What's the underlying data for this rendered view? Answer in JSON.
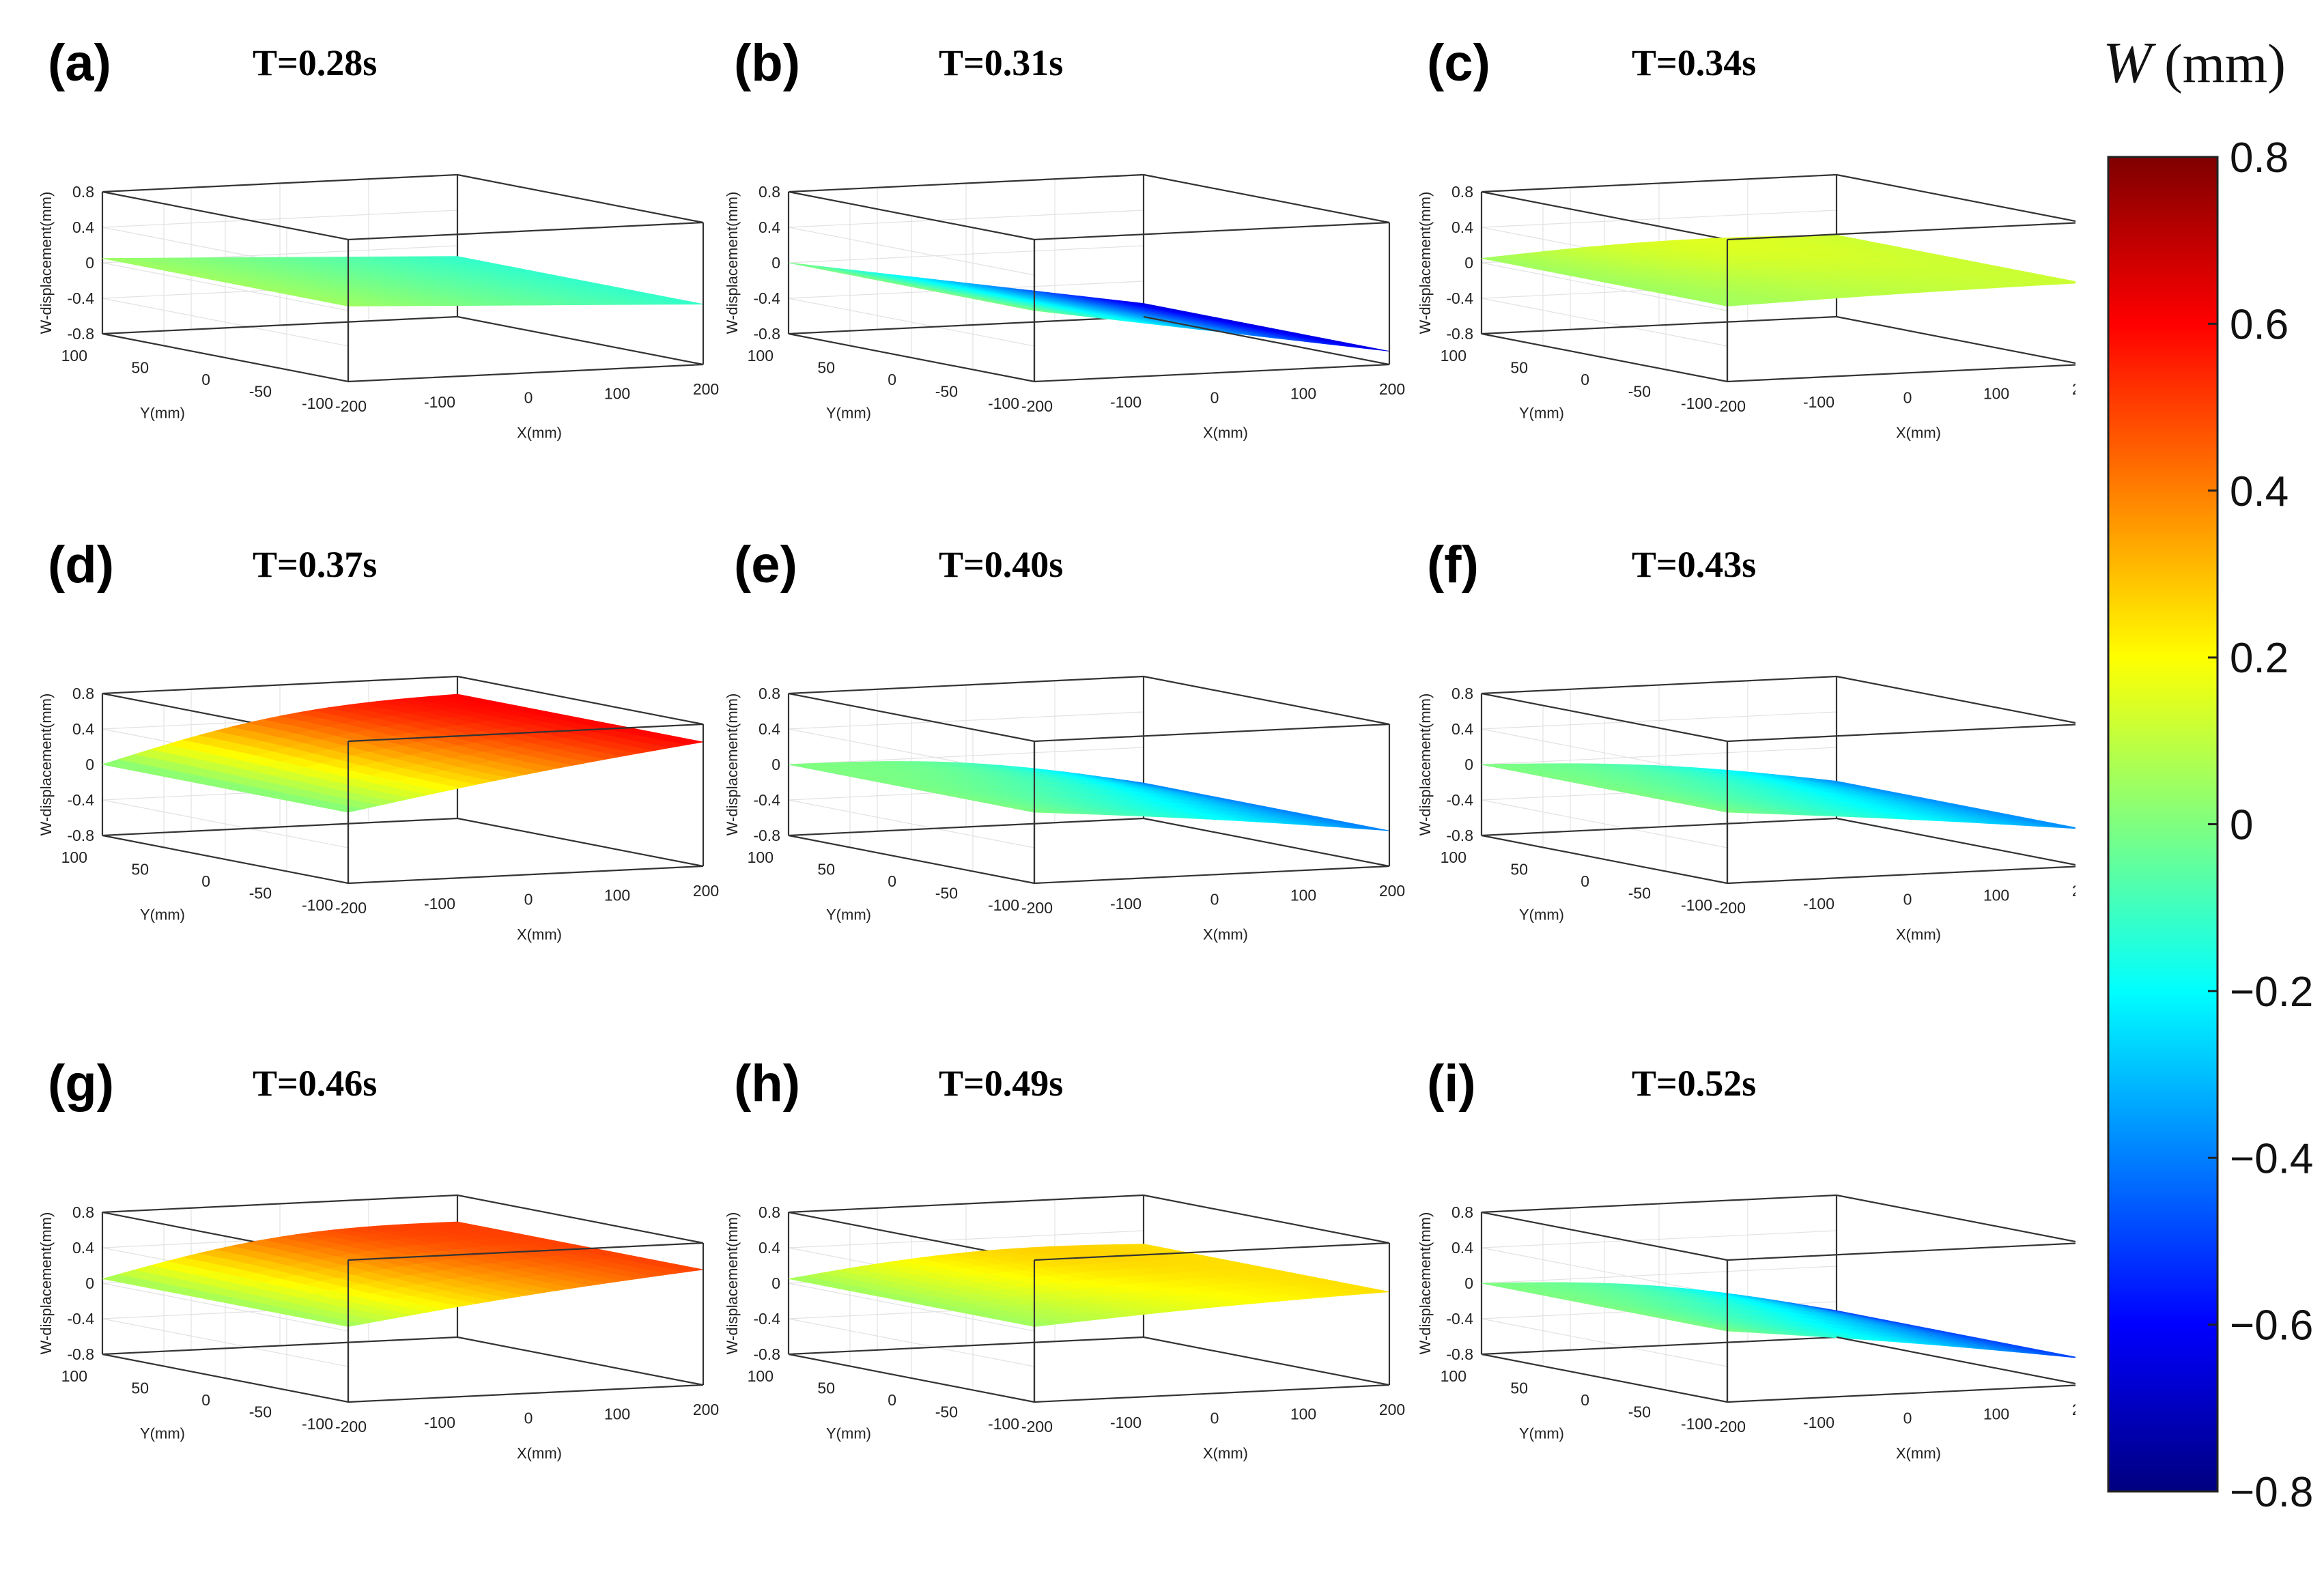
{
  "figure": {
    "colorbar": {
      "symbol": "W",
      "unit": "(mm)",
      "range": [
        -0.8,
        0.8
      ],
      "ticks": [
        "0.8",
        "0.6",
        "0.4",
        "0.2",
        "0",
        "−0.2",
        "−0.4",
        "−0.6",
        "−0.8"
      ],
      "tick_values": [
        0.8,
        0.6,
        0.4,
        0.2,
        0,
        -0.2,
        -0.4,
        -0.6,
        -0.8
      ],
      "colormap": "jet",
      "colors": [
        "#00007f",
        "#0000ff",
        "#007fff",
        "#00ffff",
        "#7fff7f",
        "#ffff00",
        "#ff7f00",
        "#ff0000",
        "#7f0000"
      ]
    },
    "axes_common": {
      "x_label": "X(mm)",
      "y_label": "Y(mm)",
      "z_label": "W-displacement(mm)",
      "x_ticks": [
        "-200",
        "-100",
        "0",
        "100",
        "200"
      ],
      "y_ticks": [
        "-100",
        "-50",
        "0",
        "50",
        "100"
      ],
      "z_ticks": [
        "-0.8",
        "-0.4",
        "0",
        "0.4",
        "0.8"
      ]
    }
  },
  "chart_data": [
    {
      "type": "surface",
      "label": "(a)",
      "title": "T=0.28s",
      "w_near_corner": 0.05,
      "w_far_corner": -0.12,
      "bump": 0.0,
      "xlabel": "X(mm)",
      "ylabel": "Y(mm)",
      "zlabel": "W-displacement(mm)",
      "xlim": [
        -200,
        200
      ],
      "ylim": [
        -100,
        100
      ],
      "zlim": [
        -0.8,
        0.8
      ]
    },
    {
      "type": "surface",
      "label": "(b)",
      "title": "T=0.31s",
      "w_near_corner": 0.0,
      "w_far_corner": -0.65,
      "bump": 0.0,
      "xlabel": "X(mm)",
      "ylabel": "Y(mm)",
      "zlabel": "W-displacement(mm)",
      "xlim": [
        -200,
        200
      ],
      "ylim": [
        -100,
        100
      ],
      "zlim": [
        -0.8,
        0.8
      ]
    },
    {
      "type": "surface",
      "label": "(c)",
      "title": "T=0.34s",
      "w_near_corner": 0.05,
      "w_far_corner": 0.12,
      "bump": 0.06,
      "xlabel": "X(mm)",
      "ylabel": "Y(mm)",
      "zlabel": "W-displacement(mm)",
      "xlim": [
        -200,
        200
      ],
      "ylim": [
        -100,
        100
      ],
      "zlim": [
        -0.8,
        0.8
      ]
    },
    {
      "type": "surface",
      "label": "(d)",
      "title": "T=0.37s",
      "w_near_corner": 0.0,
      "w_far_corner": 0.6,
      "bump": 0.15,
      "xlabel": "X(mm)",
      "ylabel": "Y(mm)",
      "zlabel": "W-displacement(mm)",
      "xlim": [
        -200,
        200
      ],
      "ylim": [
        -100,
        100
      ],
      "zlim": [
        -0.8,
        0.8
      ]
    },
    {
      "type": "surface",
      "label": "(e)",
      "title": "T=0.40s",
      "w_near_corner": 0.0,
      "w_far_corner": -0.4,
      "bump": 0.12,
      "xlabel": "X(mm)",
      "ylabel": "Y(mm)",
      "zlabel": "W-displacement(mm)",
      "xlim": [
        -200,
        200
      ],
      "ylim": [
        -100,
        100
      ],
      "zlim": [
        -0.8,
        0.8
      ]
    },
    {
      "type": "surface",
      "label": "(f)",
      "title": "T=0.43s",
      "w_near_corner": 0.0,
      "w_far_corner": -0.38,
      "bump": 0.08,
      "xlabel": "X(mm)",
      "ylabel": "Y(mm)",
      "zlabel": "W-displacement(mm)",
      "xlim": [
        -200,
        200
      ],
      "ylim": [
        -100,
        100
      ],
      "zlim": [
        -0.8,
        0.8
      ]
    },
    {
      "type": "surface",
      "label": "(g)",
      "title": "T=0.46s",
      "w_near_corner": 0.05,
      "w_far_corner": 0.5,
      "bump": 0.15,
      "xlabel": "X(mm)",
      "ylabel": "Y(mm)",
      "zlabel": "W-displacement(mm)",
      "xlim": [
        -200,
        200
      ],
      "ylim": [
        -100,
        100
      ],
      "zlim": [
        -0.8,
        0.8
      ]
    },
    {
      "type": "surface",
      "label": "(h)",
      "title": "T=0.49s",
      "w_near_corner": 0.05,
      "w_far_corner": 0.25,
      "bump": 0.1,
      "xlabel": "X(mm)",
      "ylabel": "Y(mm)",
      "zlabel": "W-displacement(mm)",
      "xlim": [
        -200,
        200
      ],
      "ylim": [
        -100,
        100
      ],
      "zlim": [
        -0.8,
        0.8
      ]
    },
    {
      "type": "surface",
      "label": "(i)",
      "title": "T=0.52s",
      "w_near_corner": 0.0,
      "w_far_corner": -0.5,
      "bump": 0.12,
      "xlabel": "X(mm)",
      "ylabel": "Y(mm)",
      "zlabel": "W-displacement(mm)",
      "xlim": [
        -200,
        200
      ],
      "ylim": [
        -100,
        100
      ],
      "zlim": [
        -0.8,
        0.8
      ]
    }
  ]
}
